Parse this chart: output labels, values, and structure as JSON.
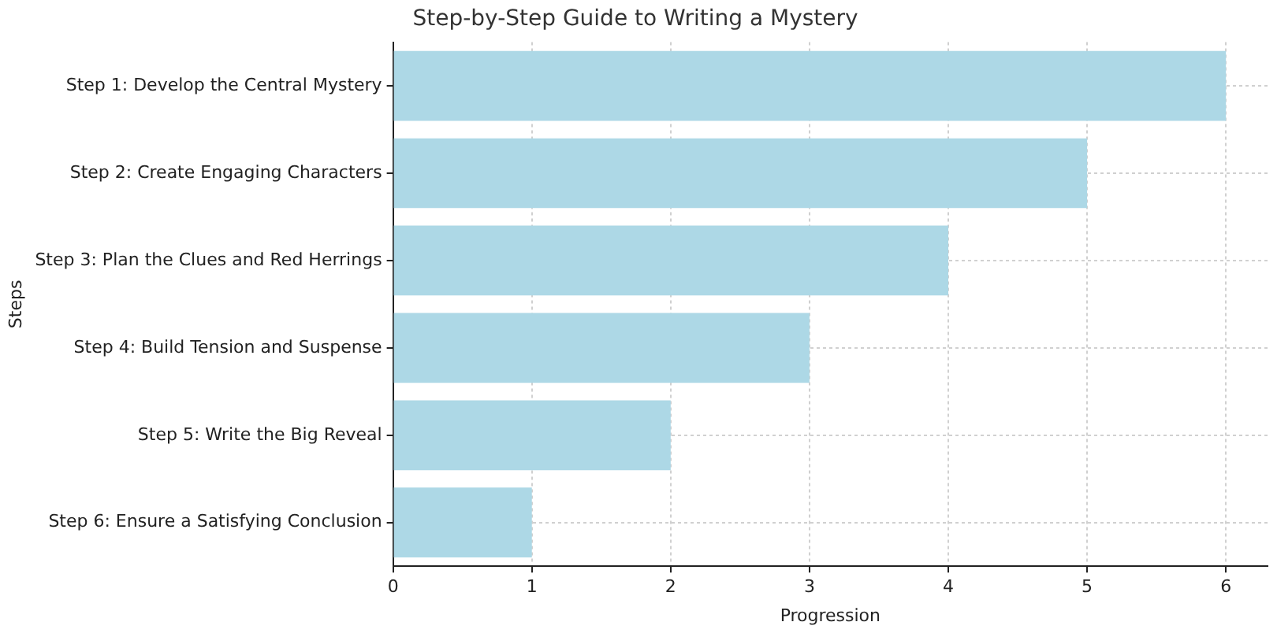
{
  "chart_data": {
    "type": "bar",
    "orientation": "horizontal",
    "title": "Step-by-Step Guide to Writing a Mystery",
    "xlabel": "Progression",
    "ylabel": "Steps",
    "categories": [
      "Step 1: Develop the Central Mystery",
      "Step 2: Create Engaging Characters",
      "Step 3: Plan the Clues and Red Herrings",
      "Step 4: Build Tension and Suspense",
      "Step 5: Write the Big Reveal",
      "Step 6: Ensure a Satisfying Conclusion"
    ],
    "values": [
      6,
      5,
      4,
      3,
      2,
      1
    ],
    "color": "#add8e6",
    "xlim": [
      0,
      6.3
    ],
    "xticks": [
      0,
      1,
      2,
      3,
      4,
      5,
      6
    ],
    "grid": true,
    "legend": false
  }
}
